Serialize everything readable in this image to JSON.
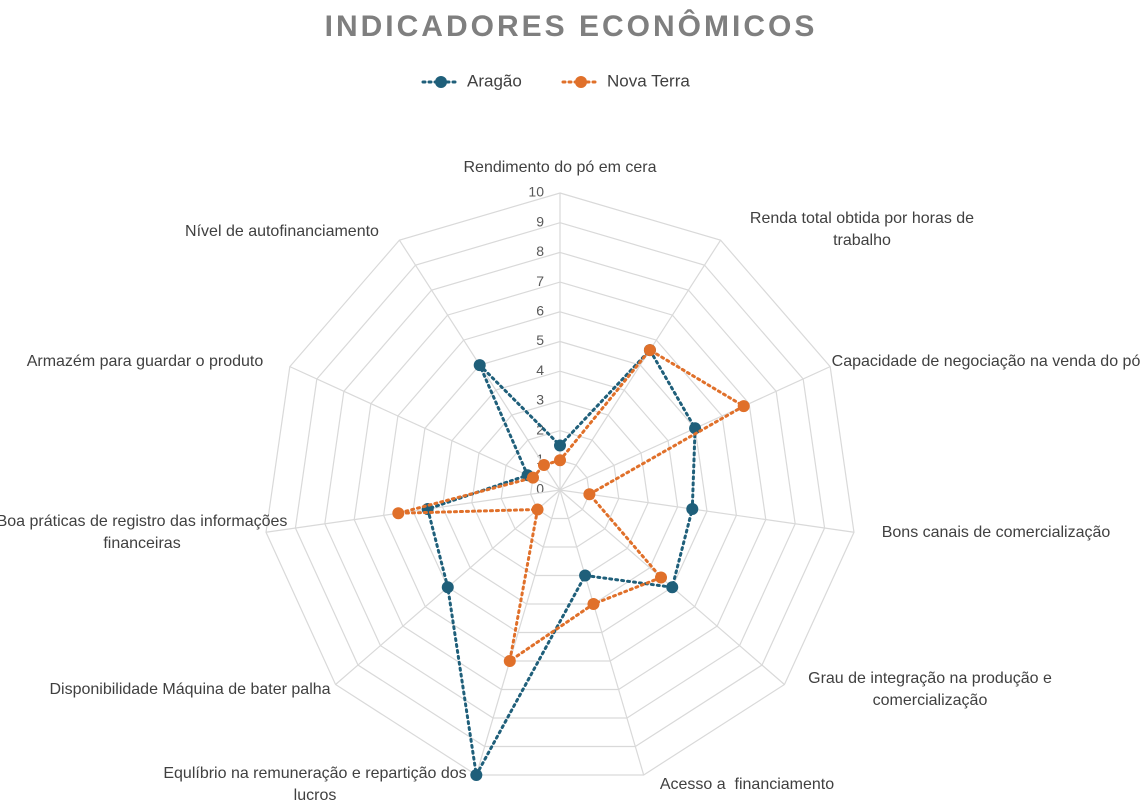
{
  "chart_data": {
    "type": "radar",
    "title": "INDICADORES ECONÔMICOS",
    "categories": [
      "Rendimento do pó em cera",
      "Renda total obtida por horas de trabalho",
      "Capacidade de negociação na venda do pó",
      "Bons canais de comercialização",
      "Grau de integração na produção e comercialização",
      "Acesso a  financiamento",
      "Equlíbrio na remuneração e repartição dos lucros",
      "Disponibilidade Máquina de bater palha",
      "Boa práticas de registro das informações financeiras",
      "Armazém para guardar o produto",
      "Nível de autofinanciamento"
    ],
    "series": [
      {
        "name": "Aragão",
        "color": "#1f5f7a",
        "values": [
          1.5,
          5.6,
          5,
          4.5,
          5,
          3,
          10,
          5,
          4.5,
          1.2,
          5
        ]
      },
      {
        "name": "Nova Terra",
        "color": "#e0702a",
        "values": [
          1,
          5.6,
          6.8,
          1,
          4.5,
          4,
          6,
          1,
          5.5,
          1,
          1
        ]
      }
    ],
    "ylim": [
      0,
      10
    ],
    "yticks": [
      0,
      1,
      2,
      3,
      4,
      5,
      6,
      7,
      8,
      9,
      10
    ],
    "grid": true,
    "legend": "top"
  }
}
